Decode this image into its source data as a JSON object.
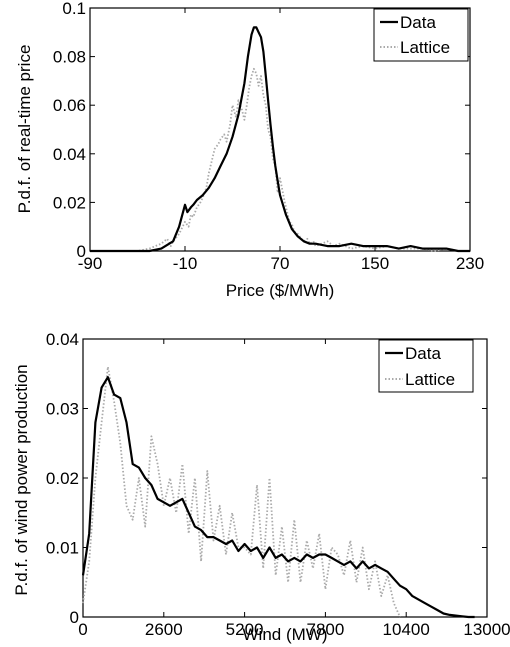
{
  "chart_data": [
    {
      "type": "line",
      "xlabel": "Price ($/MWh)",
      "ylabel": "P.d.f. of real-time price",
      "xlim": [
        -90,
        230
      ],
      "ylim": [
        0,
        0.1
      ],
      "xticks": [
        "-90",
        "-10",
        "70",
        "150",
        "230"
      ],
      "yticks": [
        "0",
        "0.02",
        "0.04",
        "0.06",
        "0.08",
        "0.1"
      ],
      "xtick_values": [
        -90,
        -10,
        70,
        150,
        230
      ],
      "ytick_values": [
        0,
        0.02,
        0.04,
        0.06,
        0.08,
        0.1
      ],
      "legend_position": "top-right",
      "series": [
        {
          "name": "Data",
          "color": "#000000",
          "style": "solid",
          "x": [
            -90,
            -40,
            -30,
            -20,
            -15,
            -10,
            -8,
            -5,
            -3,
            0,
            5,
            10,
            15,
            20,
            25,
            30,
            35,
            40,
            43,
            46,
            48,
            50,
            52,
            54,
            56,
            58,
            60,
            62,
            64,
            66,
            68,
            70,
            75,
            80,
            85,
            90,
            95,
            100,
            110,
            120,
            130,
            140,
            150,
            160,
            170,
            180,
            190,
            200,
            210,
            220,
            230
          ],
          "y": [
            0,
            0,
            0.001,
            0.004,
            0.01,
            0.019,
            0.016,
            0.018,
            0.019,
            0.021,
            0.023,
            0.026,
            0.03,
            0.035,
            0.04,
            0.047,
            0.056,
            0.069,
            0.08,
            0.089,
            0.092,
            0.092,
            0.09,
            0.088,
            0.082,
            0.072,
            0.062,
            0.052,
            0.043,
            0.035,
            0.029,
            0.023,
            0.015,
            0.009,
            0.006,
            0.004,
            0.003,
            0.003,
            0.002,
            0.002,
            0.003,
            0.002,
            0.002,
            0.002,
            0.001,
            0.002,
            0.001,
            0.001,
            0.001,
            0,
            0
          ]
        },
        {
          "name": "Lattice",
          "color": "#aaaaaa",
          "style": "dotted",
          "x": [
            -90,
            -60,
            -50,
            -40,
            -35,
            -30,
            -25,
            -22,
            -20,
            -15,
            -10,
            -7,
            -5,
            -3,
            0,
            3,
            5,
            8,
            10,
            13,
            15,
            18,
            20,
            23,
            25,
            28,
            30,
            33,
            35,
            38,
            40,
            42,
            44,
            46,
            48,
            50,
            52,
            54,
            56,
            58,
            60,
            62,
            64,
            66,
            68,
            70,
            72,
            74,
            76,
            78,
            80,
            82,
            85,
            88,
            90,
            93,
            95,
            98,
            100,
            105,
            110,
            115,
            120,
            125,
            130,
            140,
            150,
            160,
            170,
            180,
            190,
            200,
            210,
            220,
            230
          ],
          "y": [
            0,
            0,
            0,
            0.001,
            0.002,
            0.003,
            0.005,
            0.002,
            0.004,
            0.007,
            0.012,
            0.01,
            0.015,
            0.014,
            0.018,
            0.02,
            0.022,
            0.026,
            0.032,
            0.038,
            0.042,
            0.044,
            0.046,
            0.048,
            0.045,
            0.052,
            0.06,
            0.055,
            0.062,
            0.058,
            0.054,
            0.06,
            0.067,
            0.072,
            0.075,
            0.073,
            0.068,
            0.072,
            0.064,
            0.06,
            0.05,
            0.047,
            0.038,
            0.035,
            0.024,
            0.03,
            0.025,
            0.02,
            0.016,
            0.012,
            0.011,
            0.008,
            0.007,
            0.005,
            0.004,
            0.005,
            0.003,
            0.004,
            0.002,
            0.003,
            0.004,
            0.002,
            0.003,
            0.002,
            0.001,
            0.002,
            0.001,
            0.002,
            0.001,
            0.001,
            0.001,
            0,
            0.001,
            0,
            0
          ]
        }
      ]
    },
    {
      "type": "line",
      "xlabel": "Wind (MW)",
      "ylabel": "P.d.f. of wind power production",
      "xlim": [
        0,
        13000
      ],
      "ylim": [
        0,
        0.04
      ],
      "xticks": [
        "0",
        "2600",
        "5200",
        "7800",
        "10400",
        "13000"
      ],
      "yticks": [
        "0",
        "0.01",
        "0.02",
        "0.03",
        "0.04"
      ],
      "xtick_values": [
        0,
        2600,
        5200,
        7800,
        10400,
        13000
      ],
      "ytick_values": [
        0,
        0.01,
        0.02,
        0.03,
        0.04
      ],
      "legend_position": "top-right",
      "series": [
        {
          "name": "Data",
          "color": "#000000",
          "style": "solid",
          "x": [
            0,
            200,
            400,
            600,
            800,
            1000,
            1200,
            1400,
            1600,
            1800,
            2000,
            2200,
            2400,
            2600,
            2800,
            3000,
            3200,
            3400,
            3600,
            3800,
            4000,
            4200,
            4400,
            4600,
            4800,
            5000,
            5200,
            5400,
            5600,
            5800,
            6000,
            6200,
            6400,
            6600,
            6800,
            7000,
            7200,
            7400,
            7600,
            7800,
            8000,
            8200,
            8400,
            8600,
            8800,
            9000,
            9200,
            9400,
            9600,
            9800,
            10000,
            10200,
            10400,
            10600,
            10800,
            11000,
            11200,
            11400,
            11600,
            11800,
            12000,
            12200,
            12400,
            12600
          ],
          "y": [
            0.006,
            0.012,
            0.028,
            0.033,
            0.0345,
            0.032,
            0.0315,
            0.028,
            0.022,
            0.0215,
            0.02,
            0.019,
            0.017,
            0.0165,
            0.016,
            0.0165,
            0.017,
            0.015,
            0.013,
            0.0125,
            0.0115,
            0.0115,
            0.011,
            0.0105,
            0.011,
            0.0095,
            0.0105,
            0.0095,
            0.01,
            0.0085,
            0.01,
            0.0085,
            0.009,
            0.008,
            0.0085,
            0.008,
            0.009,
            0.0085,
            0.009,
            0.009,
            0.0085,
            0.008,
            0.0075,
            0.008,
            0.007,
            0.008,
            0.007,
            0.0075,
            0.007,
            0.0065,
            0.0055,
            0.0045,
            0.004,
            0.003,
            0.0025,
            0.002,
            0.0015,
            0.001,
            0.0005,
            0.0003,
            0.0002,
            0.0001,
            0,
            0
          ]
        },
        {
          "name": "Lattice",
          "color": "#aaaaaa",
          "style": "dotted",
          "x": [
            0,
            200,
            400,
            600,
            800,
            1000,
            1200,
            1400,
            1600,
            1800,
            2000,
            2200,
            2400,
            2600,
            2800,
            3000,
            3200,
            3400,
            3600,
            3800,
            4000,
            4200,
            4400,
            4600,
            4800,
            5000,
            5200,
            5400,
            5600,
            5800,
            6000,
            6200,
            6400,
            6600,
            6800,
            7000,
            7200,
            7400,
            7600,
            7800,
            8000,
            8200,
            8400,
            8600,
            8800,
            9000,
            9200,
            9400,
            9600,
            9800,
            10000,
            10200
          ],
          "y": [
            0.002,
            0.008,
            0.02,
            0.028,
            0.036,
            0.031,
            0.025,
            0.016,
            0.014,
            0.02,
            0.013,
            0.026,
            0.022,
            0.016,
            0.02,
            0.015,
            0.022,
            0.012,
            0.02,
            0.008,
            0.021,
            0.011,
            0.016,
            0.009,
            0.015,
            0.01,
            0.01,
            0.009,
            0.019,
            0.007,
            0.02,
            0.006,
            0.013,
            0.005,
            0.014,
            0.005,
            0.011,
            0.007,
            0.012,
            0.004,
            0.01,
            0.009,
            0.006,
            0.011,
            0.005,
            0.01,
            0.004,
            0.008,
            0.003,
            0.006,
            0.002,
            0
          ]
        }
      ]
    }
  ]
}
